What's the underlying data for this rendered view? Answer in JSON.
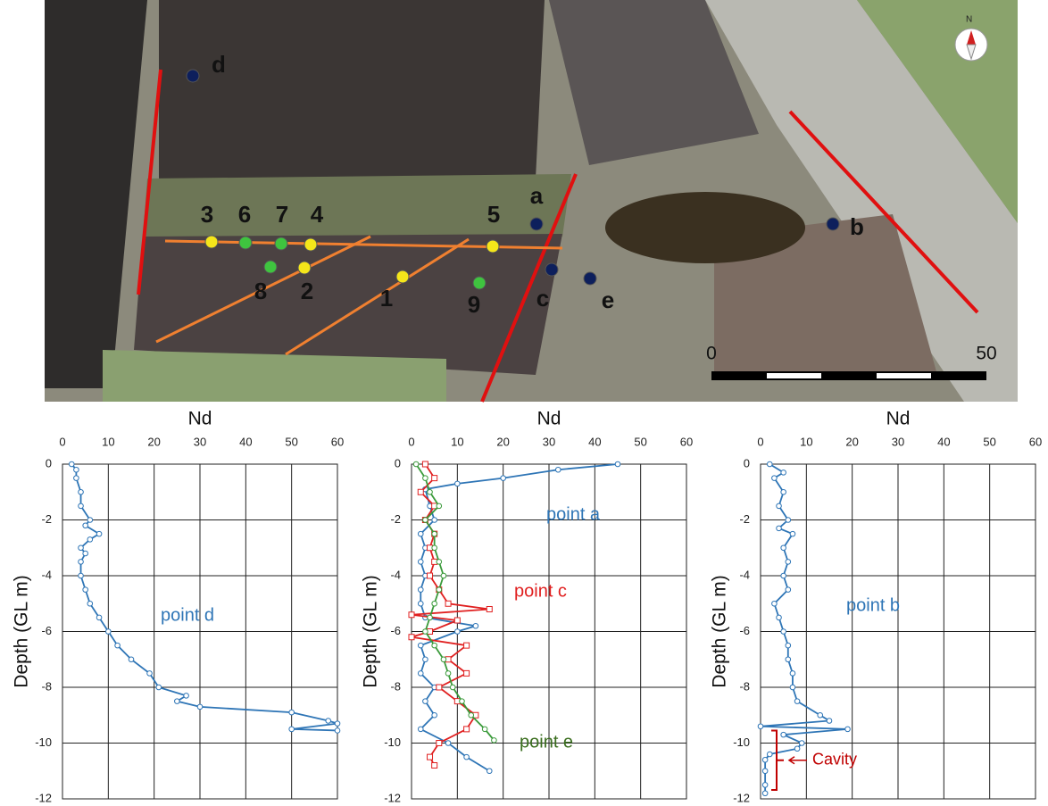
{
  "map": {
    "labels": [
      "d",
      "a",
      "b",
      "c",
      "e",
      "3",
      "6",
      "7",
      "4",
      "5",
      "8",
      "2",
      "1",
      "9"
    ],
    "north": "N",
    "scale": [
      "0",
      "50"
    ]
  },
  "chart_data": [
    {
      "type": "line",
      "x_label": "Nd",
      "y_label": "Depth (GL m)",
      "xlim": [
        0,
        60
      ],
      "xticks": [
        0,
        10,
        20,
        30,
        40,
        50,
        60
      ],
      "ylim": [
        -12,
        0
      ],
      "yticks": [
        -12,
        -10,
        -8,
        -6,
        -4,
        -2,
        0
      ],
      "grid": true,
      "series": [
        {
          "name": "point d",
          "color": "#2e75b6",
          "x": [
            2,
            3,
            3,
            4,
            4,
            6,
            5,
            8,
            6,
            4,
            5,
            4,
            4,
            5,
            6,
            8,
            10,
            12,
            15,
            19,
            21,
            27,
            25,
            30,
            50,
            58,
            60,
            50,
            60
          ],
          "values": [
            0,
            -0.2,
            -0.5,
            -1,
            -1.5,
            -2,
            -2.2,
            -2.5,
            -2.7,
            -3,
            -3.2,
            -3.5,
            -4,
            -4.5,
            -5,
            -5.5,
            -6,
            -6.5,
            -7,
            -7.5,
            -8,
            -8.3,
            -8.5,
            -8.7,
            -8.9,
            -9.2,
            -9.3,
            -9.5,
            -9.55
          ]
        }
      ]
    },
    {
      "type": "line",
      "x_label": "Nd",
      "y_label": "Depth (GL m)",
      "xlim": [
        0,
        60
      ],
      "xticks": [
        0,
        10,
        20,
        30,
        40,
        50,
        60
      ],
      "ylim": [
        -12,
        0
      ],
      "yticks": [
        -12,
        -10,
        -8,
        -6,
        -4,
        -2,
        0
      ],
      "grid": true,
      "series": [
        {
          "name": "point a",
          "color": "#2e75b6",
          "x": [
            45,
            32,
            20,
            10,
            3,
            4,
            5,
            2,
            3,
            2,
            3,
            2,
            2,
            3,
            14,
            10,
            2,
            3,
            2,
            5,
            3,
            5,
            2,
            8,
            12,
            17
          ],
          "values": [
            0,
            -0.2,
            -0.5,
            -0.7,
            -0.9,
            -1.5,
            -2,
            -2.5,
            -3,
            -3.5,
            -4,
            -4.5,
            -5,
            -5.5,
            -5.8,
            -6,
            -6.5,
            -7,
            -7.5,
            -8,
            -8.5,
            -9,
            -9.5,
            -10,
            -10.5,
            -11
          ]
        },
        {
          "name": "point c",
          "color": "#e02020",
          "x": [
            3,
            5,
            2,
            5,
            3,
            5,
            4,
            5,
            4,
            6,
            8,
            17,
            0,
            10,
            4,
            0,
            12,
            8,
            12,
            6,
            10,
            14,
            12,
            6,
            4,
            5
          ],
          "values": [
            0,
            -0.5,
            -1,
            -1.5,
            -2,
            -2.5,
            -3,
            -3.5,
            -4,
            -4.5,
            -5,
            -5.2,
            -5.4,
            -5.6,
            -6,
            -6.2,
            -6.5,
            -7,
            -7.5,
            -8,
            -8.5,
            -9,
            -9.5,
            -10,
            -10.5,
            -10.8
          ]
        },
        {
          "name": "point e",
          "color": "#3a9a3a",
          "x": [
            1,
            3,
            4,
            6,
            3,
            5,
            5,
            6,
            7,
            6,
            5,
            4,
            3,
            5,
            7,
            8,
            9,
            11,
            13,
            16,
            18
          ],
          "values": [
            0,
            -0.5,
            -1,
            -1.5,
            -2,
            -2.5,
            -3,
            -3.5,
            -4,
            -4.5,
            -5,
            -5.5,
            -6,
            -6.5,
            -7,
            -7.5,
            -8,
            -8.5,
            -9,
            -9.5,
            -9.9
          ]
        }
      ]
    },
    {
      "type": "line",
      "x_label": "Nd",
      "y_label": "Depth (GL m)",
      "xlim": [
        0,
        60
      ],
      "xticks": [
        0,
        10,
        20,
        30,
        40,
        50,
        60
      ],
      "ylim": [
        -12,
        0
      ],
      "yticks": [
        -12,
        -10,
        -8,
        -6,
        -4,
        -2,
        0
      ],
      "grid": true,
      "annotations": [
        {
          "text": "Cavity"
        }
      ],
      "series": [
        {
          "name": "point b",
          "color": "#2e75b6",
          "x": [
            2,
            5,
            3,
            5,
            4,
            6,
            4,
            7,
            5,
            6,
            5,
            6,
            3,
            4,
            5,
            6,
            6,
            7,
            7,
            8,
            13,
            15,
            0,
            19,
            5,
            9,
            8,
            2,
            1,
            1,
            1,
            1
          ],
          "values": [
            0,
            -0.3,
            -0.5,
            -1,
            -1.5,
            -2,
            -2.3,
            -2.5,
            -3,
            -3.5,
            -4,
            -4.5,
            -5,
            -5.5,
            -6,
            -6.5,
            -7,
            -7.5,
            -8,
            -8.5,
            -9,
            -9.2,
            -9.4,
            -9.5,
            -9.7,
            -10,
            -10.2,
            -10.4,
            -10.6,
            -11,
            -11.5,
            -11.8
          ]
        }
      ]
    }
  ]
}
